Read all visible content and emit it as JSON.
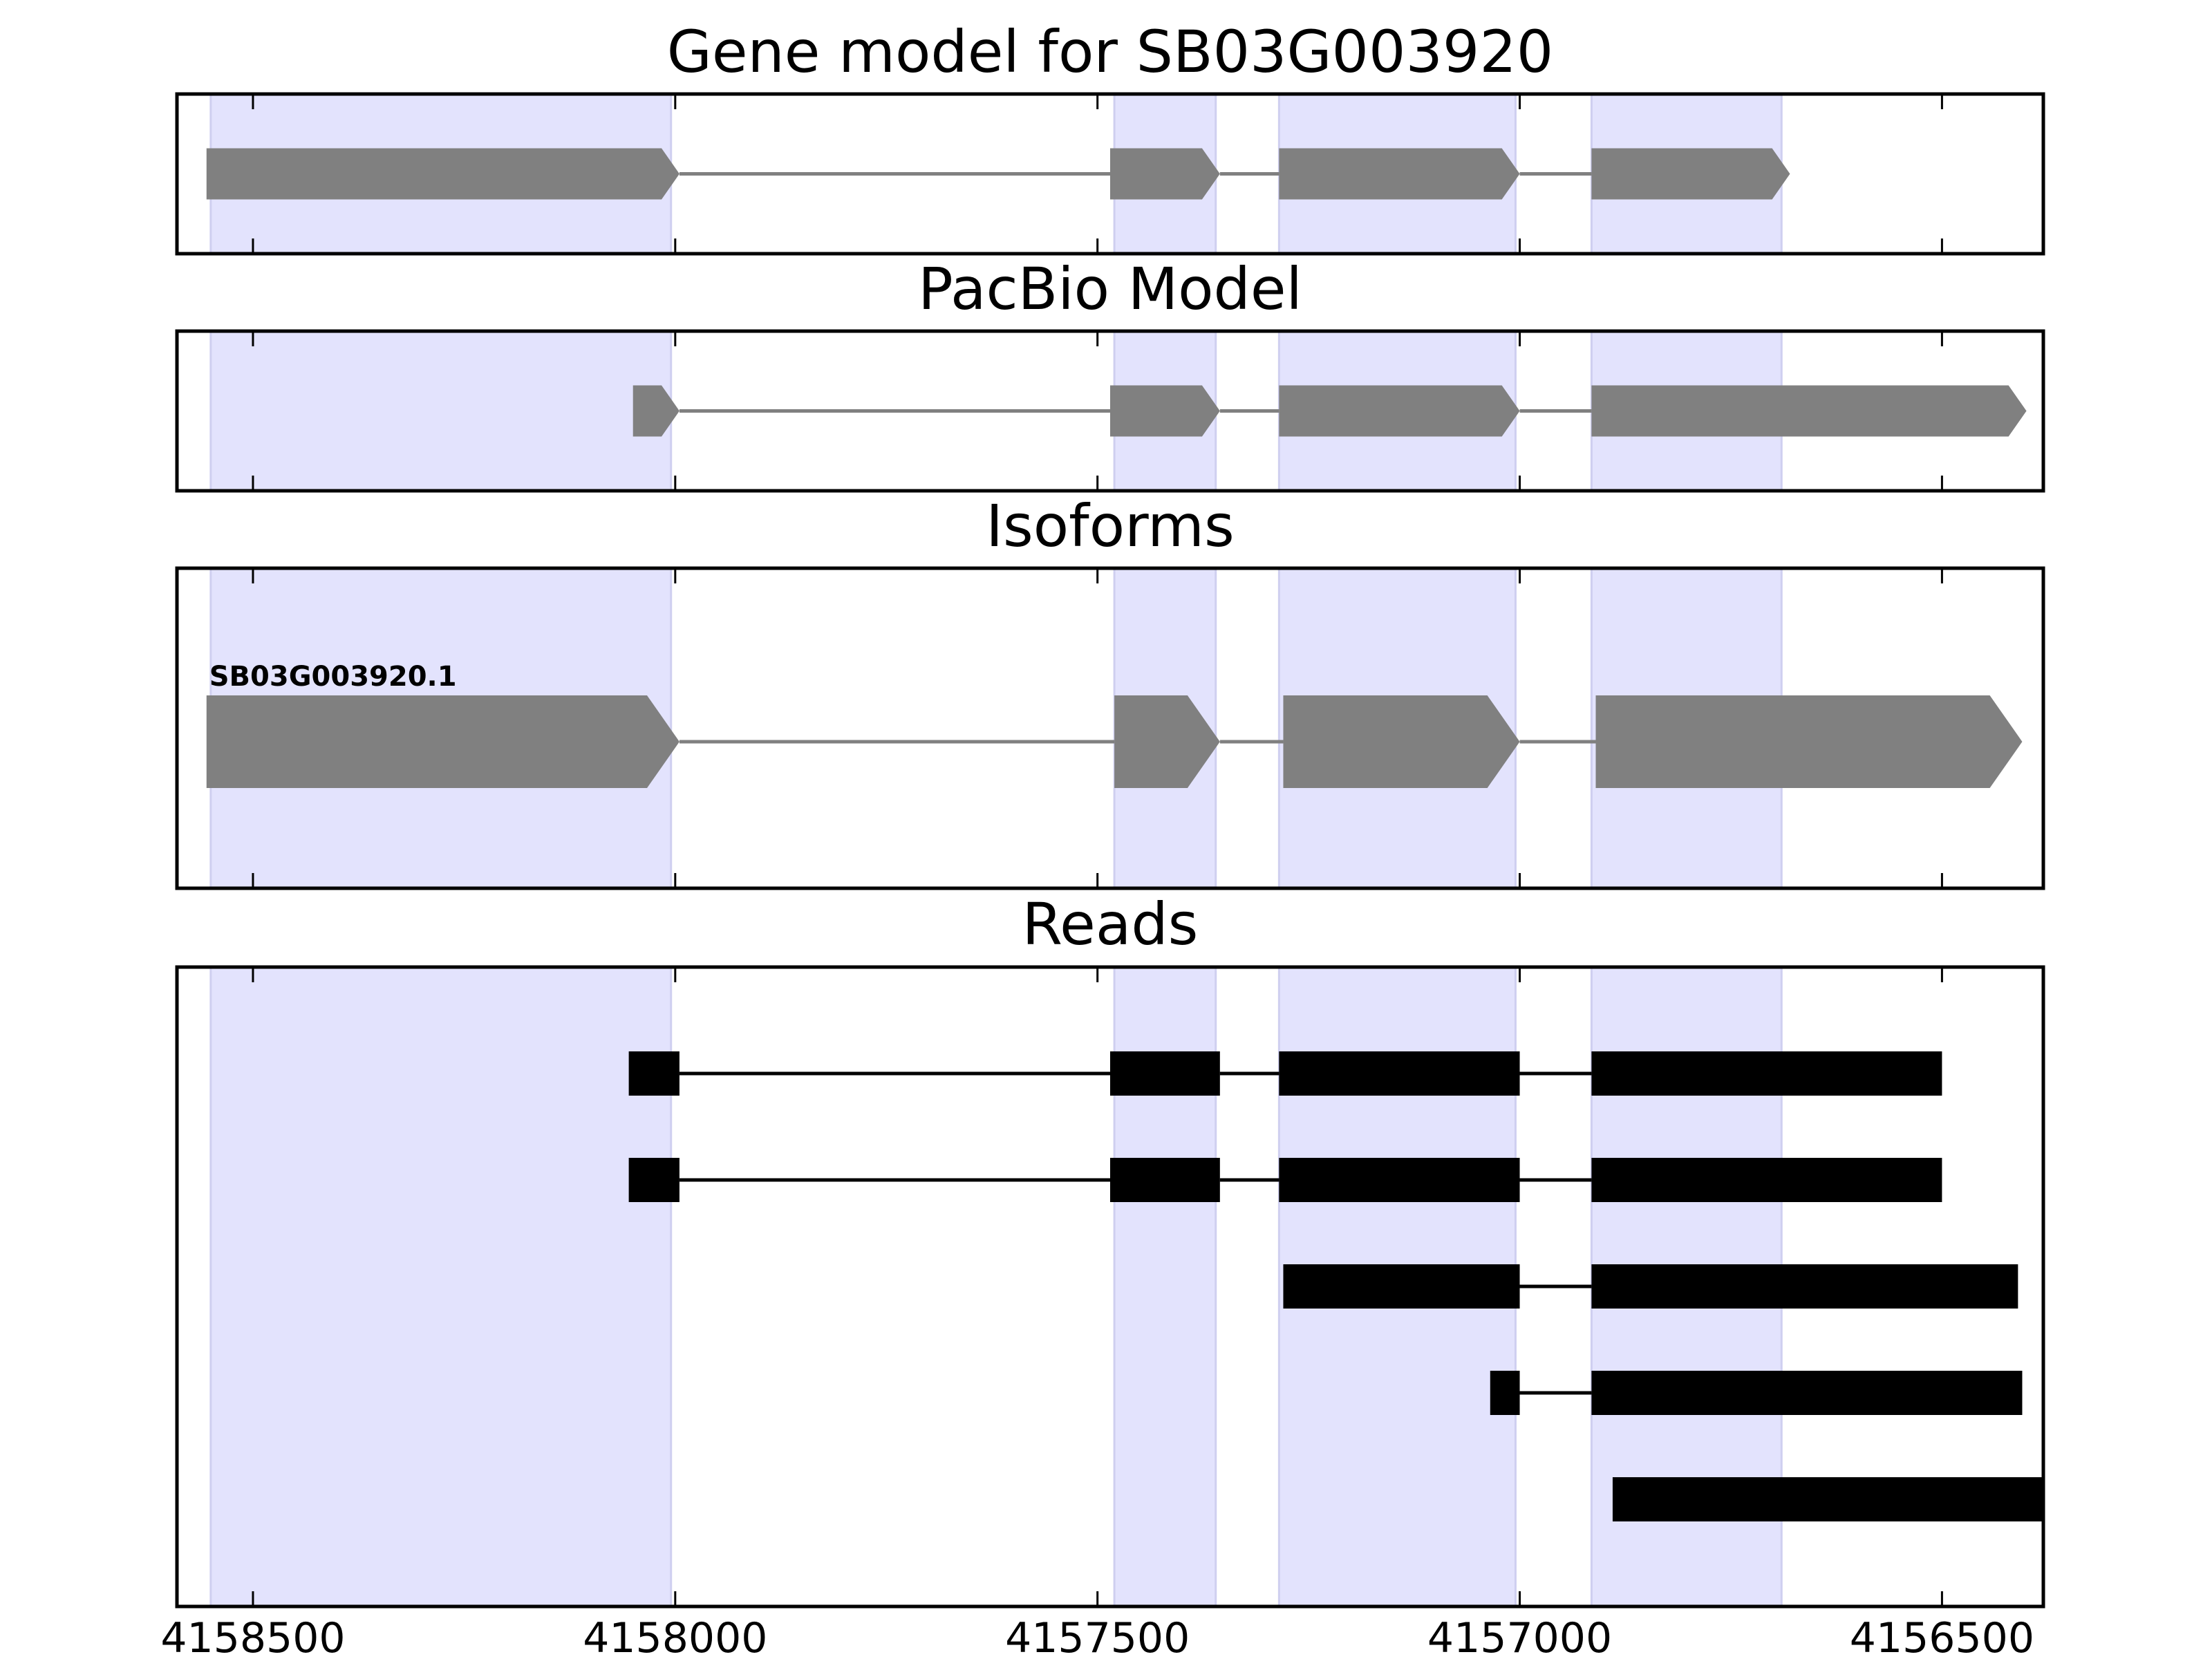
{
  "colors": {
    "shade": "#e3e3fd",
    "shade_edge": "#cfcff0",
    "model": "#808080",
    "read": "#000000"
  },
  "axis": {
    "xlim": [
      4158590,
      4156380
    ],
    "ticks": [
      4158500,
      4158000,
      4157500,
      4157000,
      4156500
    ],
    "tick_labels": [
      "4158500",
      "4158000",
      "4157500",
      "4157000",
      "4156500"
    ]
  },
  "shaded_exons": [
    [
      4158550,
      4158005
    ],
    [
      4157480,
      4157360
    ],
    [
      4157285,
      4157005
    ],
    [
      4156915,
      4156690
    ]
  ],
  "panels": [
    {
      "id": "gene-model",
      "title": "Gene model for SB03G003920",
      "kind": "model",
      "tracks": [
        {
          "label": "",
          "exons": [
            [
              4158555,
              4157995
            ],
            [
              4157485,
              4157355
            ],
            [
              4157285,
              4157000
            ],
            [
              4156915,
              4156680
            ]
          ]
        }
      ]
    },
    {
      "id": "pacbio-model",
      "title": "PacBio Model",
      "kind": "model",
      "tracks": [
        {
          "label": "",
          "exons": [
            [
              4158050,
              4157995
            ],
            [
              4157485,
              4157355
            ],
            [
              4157285,
              4157000
            ],
            [
              4156915,
              4156400
            ]
          ]
        }
      ]
    },
    {
      "id": "isoforms",
      "title": "Isoforms",
      "kind": "model",
      "tracks": [
        {
          "label": "SB03G003920.1",
          "exons": [
            [
              4158555,
              4157995
            ],
            [
              4157480,
              4157355
            ],
            [
              4157280,
              4157000
            ],
            [
              4156910,
              4156405
            ]
          ]
        }
      ]
    },
    {
      "id": "reads",
      "title": "Reads",
      "kind": "reads",
      "tracks": [
        {
          "label": "",
          "exons": [
            [
              4158055,
              4157995
            ],
            [
              4157485,
              4157355
            ],
            [
              4157285,
              4157000
            ],
            [
              4156915,
              4156500
            ]
          ]
        },
        {
          "label": "",
          "exons": [
            [
              4158055,
              4157995
            ],
            [
              4157485,
              4157355
            ],
            [
              4157285,
              4157000
            ],
            [
              4156915,
              4156500
            ]
          ]
        },
        {
          "label": "",
          "exons": [
            [
              4157280,
              4157000
            ],
            [
              4156915,
              4156410
            ]
          ]
        },
        {
          "label": "",
          "exons": [
            [
              4157035,
              4157000
            ],
            [
              4156915,
              4156405
            ]
          ]
        },
        {
          "label": "",
          "exons": [
            [
              4156890,
              4156380
            ]
          ]
        }
      ]
    }
  ]
}
